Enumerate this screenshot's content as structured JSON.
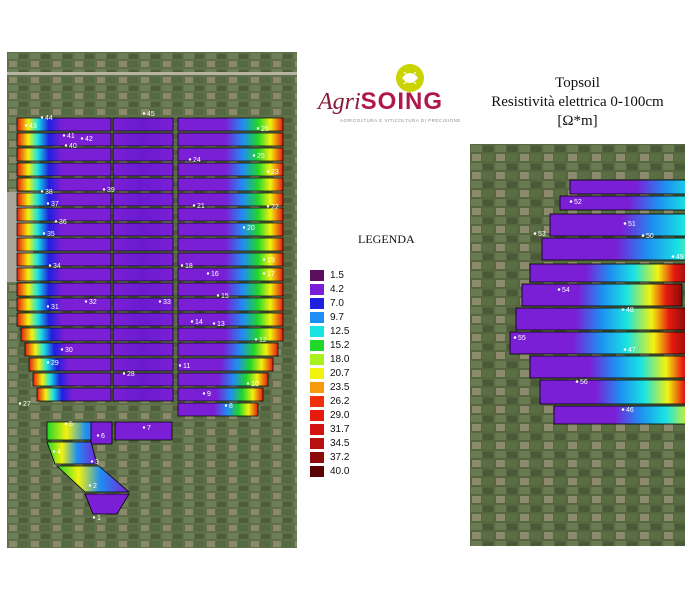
{
  "title": {
    "line1": "Topsoil",
    "line2": "Resistività elettrica 0-100cm",
    "line3": "[Ω*m]"
  },
  "logo": {
    "agri": "Agri",
    "soing": "SOING",
    "tagline": "AGRICOLTURA E VITICOLTURA DI PRECISIONE",
    "accent_color": "#c9d400",
    "brand_color": "#b0174b"
  },
  "legend": {
    "title": "LEGENDA",
    "items": [
      {
        "value": "1.5",
        "color": "#5b0f5e"
      },
      {
        "value": "4.2",
        "color": "#7a1fd6"
      },
      {
        "value": "7.0",
        "color": "#1f1fe0"
      },
      {
        "value": "9.7",
        "color": "#1f8ef2"
      },
      {
        "value": "12.5",
        "color": "#19e3e3"
      },
      {
        "value": "15.2",
        "color": "#20d72a"
      },
      {
        "value": "18.0",
        "color": "#a8f020"
      },
      {
        "value": "20.7",
        "color": "#f2f20f"
      },
      {
        "value": "23.5",
        "color": "#f59a0c"
      },
      {
        "value": "26.2",
        "color": "#f0300c"
      },
      {
        "value": "29.0",
        "color": "#e61a0f"
      },
      {
        "value": "31.7",
        "color": "#d2120f"
      },
      {
        "value": "34.5",
        "color": "#b80f0f"
      },
      {
        "value": "37.2",
        "color": "#8c0a0a"
      },
      {
        "value": "40.0",
        "color": "#5a0505"
      }
    ]
  },
  "map_left": {
    "plot_labels": [
      "1",
      "2",
      "3",
      "4",
      "5",
      "6",
      "7",
      "8",
      "9",
      "10",
      "11",
      "12",
      "13",
      "14",
      "15",
      "16",
      "17",
      "18",
      "19",
      "20",
      "21",
      "22",
      "23",
      "24",
      "25",
      "26",
      "27",
      "28",
      "29",
      "30",
      "31",
      "32",
      "33",
      "34",
      "35",
      "36",
      "37",
      "38",
      "39",
      "40",
      "41",
      "42",
      "43",
      "44",
      "45"
    ]
  },
  "map_right": {
    "plot_labels": [
      "46",
      "47",
      "48",
      "49",
      "50",
      "51",
      "52",
      "53",
      "54",
      "55",
      "56"
    ]
  }
}
